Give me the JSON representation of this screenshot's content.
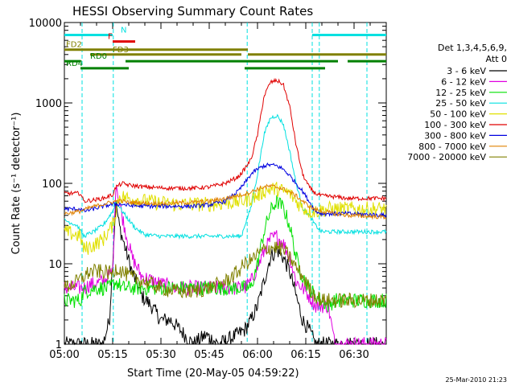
{
  "chart_data": {
    "type": "line",
    "title": "HESSI Observing Summary Count Rates",
    "xlabel": "Start Time (20-May-05 04:59:22)",
    "ylabel": "Count Rate (s⁻¹ detector⁻¹)",
    "x_ticks": [
      "05:00",
      "05:15",
      "05:30",
      "05:45",
      "06:00",
      "06:15",
      "06:30"
    ],
    "x_tick_minutes": [
      0,
      15,
      30,
      45,
      60,
      75,
      90
    ],
    "xlim_minutes": [
      0,
      100
    ],
    "y_scale": "log",
    "ylim": [
      1,
      10000
    ],
    "y_ticks": [
      "1",
      "10",
      "100",
      "1000",
      "10000"
    ],
    "y_tick_values": [
      1,
      10,
      100,
      1000,
      10000
    ],
    "legend_header": [
      "Det 1,3,4,5,6,9,",
      "Att 0"
    ],
    "series": [
      {
        "name": "3 - 6 keV",
        "color": "#000000",
        "points": [
          [
            0,
            1
          ],
          [
            12,
            1
          ],
          [
            14,
            2
          ],
          [
            16,
            60
          ],
          [
            17,
            30
          ],
          [
            19,
            15
          ],
          [
            21,
            8
          ],
          [
            24,
            4
          ],
          [
            27,
            3
          ],
          [
            30,
            2
          ],
          [
            33,
            2
          ],
          [
            36,
            1.5
          ],
          [
            40,
            1
          ],
          [
            44,
            1.3
          ],
          [
            48,
            1
          ],
          [
            52,
            1.2
          ],
          [
            56,
            1.5
          ],
          [
            58,
            2
          ],
          [
            60,
            3
          ],
          [
            62,
            6
          ],
          [
            64,
            12
          ],
          [
            66,
            15
          ],
          [
            68,
            12
          ],
          [
            70,
            8
          ],
          [
            72,
            4
          ],
          [
            74,
            2
          ],
          [
            76,
            1.5
          ],
          [
            78,
            1
          ],
          [
            88,
            1
          ],
          [
            100,
            1
          ]
        ]
      },
      {
        "name": "6 - 12 keV",
        "color": "#e000e0",
        "points": [
          [
            0,
            5
          ],
          [
            6,
            5
          ],
          [
            8,
            5.5
          ],
          [
            12,
            6
          ],
          [
            15,
            8
          ],
          [
            16,
            110
          ],
          [
            17,
            60
          ],
          [
            19,
            25
          ],
          [
            21,
            12
          ],
          [
            24,
            7
          ],
          [
            28,
            6
          ],
          [
            34,
            5
          ],
          [
            40,
            5
          ],
          [
            46,
            5
          ],
          [
            52,
            5
          ],
          [
            56,
            5
          ],
          [
            58,
            6
          ],
          [
            60,
            9
          ],
          [
            62,
            14
          ],
          [
            64,
            20
          ],
          [
            66,
            22
          ],
          [
            68,
            18
          ],
          [
            70,
            12
          ],
          [
            72,
            6
          ],
          [
            74,
            5
          ],
          [
            76,
            4
          ],
          [
            78,
            3
          ],
          [
            82,
            3
          ],
          [
            84,
            1
          ],
          [
            88,
            1
          ],
          [
            100,
            1
          ]
        ]
      },
      {
        "name": "12 - 25 keV",
        "color": "#00e000",
        "points": [
          [
            0,
            3.5
          ],
          [
            5,
            3.5
          ],
          [
            6,
            4.5
          ],
          [
            10,
            5
          ],
          [
            14,
            5
          ],
          [
            16,
            6
          ],
          [
            18,
            5
          ],
          [
            24,
            5
          ],
          [
            30,
            5
          ],
          [
            40,
            5
          ],
          [
            50,
            5
          ],
          [
            56,
            5
          ],
          [
            58,
            5
          ],
          [
            60,
            10
          ],
          [
            62,
            25
          ],
          [
            64,
            45
          ],
          [
            66,
            60
          ],
          [
            68,
            50
          ],
          [
            70,
            30
          ],
          [
            72,
            12
          ],
          [
            74,
            7
          ],
          [
            76,
            5
          ],
          [
            78,
            4
          ],
          [
            82,
            3
          ],
          [
            84,
            3.5
          ],
          [
            88,
            3.5
          ],
          [
            100,
            3.5
          ]
        ]
      },
      {
        "name": "25 - 50 keV",
        "color": "#00e0e0",
        "points": [
          [
            0,
            35
          ],
          [
            4,
            30
          ],
          [
            6,
            22
          ],
          [
            9,
            25
          ],
          [
            12,
            30
          ],
          [
            15,
            45
          ],
          [
            16,
            60
          ],
          [
            18,
            45
          ],
          [
            20,
            35
          ],
          [
            22,
            28
          ],
          [
            25,
            23
          ],
          [
            30,
            22
          ],
          [
            40,
            22
          ],
          [
            50,
            22
          ],
          [
            55,
            22
          ],
          [
            56,
            30
          ],
          [
            58,
            50
          ],
          [
            60,
            130
          ],
          [
            62,
            400
          ],
          [
            64,
            650
          ],
          [
            66,
            700
          ],
          [
            68,
            550
          ],
          [
            70,
            250
          ],
          [
            72,
            100
          ],
          [
            74,
            50
          ],
          [
            76,
            40
          ],
          [
            78,
            30
          ],
          [
            80,
            25
          ],
          [
            84,
            25
          ],
          [
            88,
            25
          ],
          [
            100,
            25
          ]
        ]
      },
      {
        "name": "50 - 100 keV",
        "color": "#e0e000",
        "points": [
          [
            0,
            25
          ],
          [
            5,
            22
          ],
          [
            6,
            15
          ],
          [
            9,
            17
          ],
          [
            12,
            20
          ],
          [
            15,
            30
          ],
          [
            16,
            45
          ],
          [
            17,
            70
          ],
          [
            20,
            65
          ],
          [
            25,
            60
          ],
          [
            30,
            57
          ],
          [
            35,
            55
          ],
          [
            40,
            55
          ],
          [
            45,
            55
          ],
          [
            50,
            57
          ],
          [
            55,
            60
          ],
          [
            58,
            65
          ],
          [
            60,
            70
          ],
          [
            62,
            80
          ],
          [
            64,
            85
          ],
          [
            66,
            85
          ],
          [
            68,
            80
          ],
          [
            70,
            75
          ],
          [
            72,
            60
          ],
          [
            74,
            50
          ],
          [
            76,
            45
          ],
          [
            78,
            45
          ],
          [
            82,
            48
          ],
          [
            88,
            48
          ],
          [
            100,
            48
          ]
        ]
      },
      {
        "name": "100 - 300 keV",
        "color": "#e00000",
        "points": [
          [
            0,
            75
          ],
          [
            5,
            75
          ],
          [
            6,
            60
          ],
          [
            9,
            62
          ],
          [
            12,
            65
          ],
          [
            15,
            72
          ],
          [
            16,
            90
          ],
          [
            18,
            100
          ],
          [
            20,
            95
          ],
          [
            25,
            90
          ],
          [
            30,
            88
          ],
          [
            35,
            87
          ],
          [
            40,
            87
          ],
          [
            45,
            90
          ],
          [
            50,
            100
          ],
          [
            54,
            120
          ],
          [
            56,
            150
          ],
          [
            58,
            200
          ],
          [
            60,
            400
          ],
          [
            62,
            1200
          ],
          [
            64,
            1800
          ],
          [
            66,
            1900
          ],
          [
            68,
            1700
          ],
          [
            70,
            900
          ],
          [
            72,
            300
          ],
          [
            74,
            130
          ],
          [
            76,
            90
          ],
          [
            78,
            75
          ],
          [
            80,
            70
          ],
          [
            84,
            68
          ],
          [
            88,
            65
          ],
          [
            100,
            65
          ]
        ]
      },
      {
        "name": "300 - 800 keV",
        "color": "#0000e0",
        "points": [
          [
            0,
            48
          ],
          [
            5,
            48
          ],
          [
            6,
            45
          ],
          [
            9,
            48
          ],
          [
            12,
            52
          ],
          [
            15,
            55
          ],
          [
            16,
            55
          ],
          [
            18,
            55
          ],
          [
            20,
            53
          ],
          [
            25,
            52
          ],
          [
            30,
            52
          ],
          [
            35,
            52
          ],
          [
            40,
            52
          ],
          [
            45,
            54
          ],
          [
            50,
            60
          ],
          [
            54,
            80
          ],
          [
            56,
            100
          ],
          [
            58,
            130
          ],
          [
            60,
            150
          ],
          [
            62,
            165
          ],
          [
            64,
            170
          ],
          [
            66,
            165
          ],
          [
            68,
            150
          ],
          [
            70,
            125
          ],
          [
            72,
            100
          ],
          [
            74,
            80
          ],
          [
            76,
            60
          ],
          [
            78,
            45
          ],
          [
            80,
            42
          ],
          [
            84,
            42
          ],
          [
            88,
            42
          ],
          [
            100,
            40
          ]
        ]
      },
      {
        "name": "800 - 7000 keV",
        "color": "#e08000",
        "points": [
          [
            0,
            42
          ],
          [
            5,
            45
          ],
          [
            8,
            50
          ],
          [
            12,
            55
          ],
          [
            16,
            60
          ],
          [
            18,
            60
          ],
          [
            20,
            58
          ],
          [
            25,
            57
          ],
          [
            30,
            56
          ],
          [
            35,
            57
          ],
          [
            40,
            58
          ],
          [
            45,
            60
          ],
          [
            50,
            65
          ],
          [
            55,
            72
          ],
          [
            58,
            78
          ],
          [
            60,
            85
          ],
          [
            62,
            90
          ],
          [
            64,
            92
          ],
          [
            66,
            90
          ],
          [
            68,
            85
          ],
          [
            70,
            78
          ],
          [
            72,
            70
          ],
          [
            74,
            60
          ],
          [
            76,
            52
          ],
          [
            78,
            47
          ],
          [
            80,
            45
          ],
          [
            84,
            42
          ],
          [
            88,
            40
          ],
          [
            100,
            38
          ]
        ]
      },
      {
        "name": "7000 - 20000 keV",
        "color": "#808000",
        "points": [
          [
            0,
            5
          ],
          [
            4,
            6
          ],
          [
            8,
            8
          ],
          [
            12,
            8
          ],
          [
            15,
            7.5
          ],
          [
            16,
            9
          ],
          [
            18,
            8
          ],
          [
            20,
            7
          ],
          [
            25,
            6
          ],
          [
            30,
            5
          ],
          [
            35,
            4.5
          ],
          [
            40,
            4.5
          ],
          [
            45,
            5
          ],
          [
            50,
            6
          ],
          [
            54,
            8
          ],
          [
            56,
            10
          ],
          [
            58,
            11
          ],
          [
            60,
            13
          ],
          [
            62,
            15
          ],
          [
            64,
            16
          ],
          [
            66,
            16
          ],
          [
            68,
            15
          ],
          [
            70,
            12
          ],
          [
            72,
            9
          ],
          [
            74,
            7
          ],
          [
            76,
            5
          ],
          [
            78,
            4
          ],
          [
            80,
            3.5
          ],
          [
            84,
            3.5
          ],
          [
            88,
            3.5
          ],
          [
            100,
            3.5
          ]
        ]
      }
    ],
    "flags": [
      {
        "label": "N",
        "color": "#00e0e0",
        "y": 7000,
        "segments": [
          [
            0,
            15
          ],
          [
            77,
            100
          ]
        ]
      },
      {
        "label": "F",
        "color": "#e00000",
        "y": 5800,
        "segments": [
          [
            15,
            22
          ]
        ]
      },
      {
        "label": "FD2",
        "color": "#808000",
        "y": 4600,
        "segments": [
          [
            0,
            57
          ]
        ]
      },
      {
        "label": "FD3",
        "color": "#808000",
        "y": 4000,
        "segments": [
          [
            8,
            55
          ],
          [
            57,
            100
          ]
        ]
      },
      {
        "label": "RD0",
        "color": "#008000",
        "y": 3300,
        "segments": [
          [
            0,
            5
          ],
          [
            19,
            85
          ],
          [
            88,
            100
          ]
        ]
      },
      {
        "label": "RD4",
        "color": "#008000",
        "y": 2700,
        "segments": [
          [
            5,
            20
          ],
          [
            56,
            81
          ]
        ]
      }
    ],
    "dashed_verticals_minutes": [
      5.5,
      15.2,
      56.8,
      77.0,
      79.2,
      94.0
    ],
    "vertical_line_color": "#00e0e0"
  },
  "footer": {
    "timestamp": "25-Mar-2010 21:23"
  }
}
